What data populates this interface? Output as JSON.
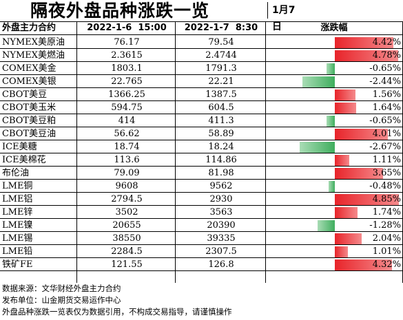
{
  "title": "隔夜外盘品种涨跌一览",
  "date": "1月7日",
  "headers": {
    "name": "外盘主力合约",
    "v1": "2022-1-6  15:00",
    "v2": "2022-1-7  8:30",
    "change": "涨跌幅"
  },
  "rows": [
    {
      "name": "NYMEX美原油",
      "v1": "76.17",
      "v2": "79.54",
      "change_pct": 4.42,
      "change_label": "4.42%"
    },
    {
      "name": "NYMEX美燃油",
      "v1": "2.3615",
      "v2": "2.4744",
      "change_pct": 4.78,
      "change_label": "4.78%"
    },
    {
      "name": "COMEX美金",
      "v1": "1803.1",
      "v2": "1791.3",
      "change_pct": -0.65,
      "change_label": "-0.65%"
    },
    {
      "name": "COMEX美银",
      "v1": "22.765",
      "v2": "22.21",
      "change_pct": -2.44,
      "change_label": "-2.44%"
    },
    {
      "name": "CBOT美豆",
      "v1": "1366.25",
      "v2": "1387.5",
      "change_pct": 1.56,
      "change_label": "1.56%"
    },
    {
      "name": "CBOT美玉米",
      "v1": "594.75",
      "v2": "604.5",
      "change_pct": 1.64,
      "change_label": "1.64%"
    },
    {
      "name": "CBOT美豆粕",
      "v1": "414",
      "v2": "411.3",
      "change_pct": -0.65,
      "change_label": "-0.65%"
    },
    {
      "name": "CBOT美豆油",
      "v1": "56.62",
      "v2": "58.89",
      "change_pct": 4.01,
      "change_label": "4.01%"
    },
    {
      "name": "ICE美糖",
      "v1": "18.74",
      "v2": "18.24",
      "change_pct": -2.67,
      "change_label": "-2.67%"
    },
    {
      "name": "ICE美棉花",
      "v1": "113.6",
      "v2": "114.86",
      "change_pct": 1.11,
      "change_label": "1.11%"
    },
    {
      "name": "布伦油",
      "v1": "79.09",
      "v2": "81.98",
      "change_pct": 3.65,
      "change_label": "3.65%"
    },
    {
      "name": "LME铜",
      "v1": "9608",
      "v2": "9562",
      "change_pct": -0.48,
      "change_label": "-0.48%"
    },
    {
      "name": "LME铝",
      "v1": "2794.5",
      "v2": "2930",
      "change_pct": 4.85,
      "change_label": "4.85%"
    },
    {
      "name": "LME锌",
      "v1": "3502",
      "v2": "3563",
      "change_pct": 1.74,
      "change_label": "1.74%"
    },
    {
      "name": "LME镍",
      "v1": "20655",
      "v2": "20390",
      "change_pct": -1.28,
      "change_label": "-1.28%"
    },
    {
      "name": "LME锡",
      "v1": "38550",
      "v2": "39335",
      "change_pct": 2.04,
      "change_label": "2.04%"
    },
    {
      "name": "LME铅",
      "v1": "2284.5",
      "v2": "2307.5",
      "change_pct": 1.01,
      "change_label": "1.01%"
    },
    {
      "name": "铁矿FE",
      "v1": "121.55",
      "v2": "126.8",
      "change_pct": 4.32,
      "change_label": "4.32%"
    }
  ],
  "colors": {
    "up": "#e8242a",
    "down": "#3fae5e"
  },
  "notes": [
    "数据来源：文华财经外盘主力合约",
    "发布单位：山金期货交易运作中心",
    "外盘品种涨跌一览表仅为数据引用，不构成交易指导，请谨慎操作"
  ]
}
